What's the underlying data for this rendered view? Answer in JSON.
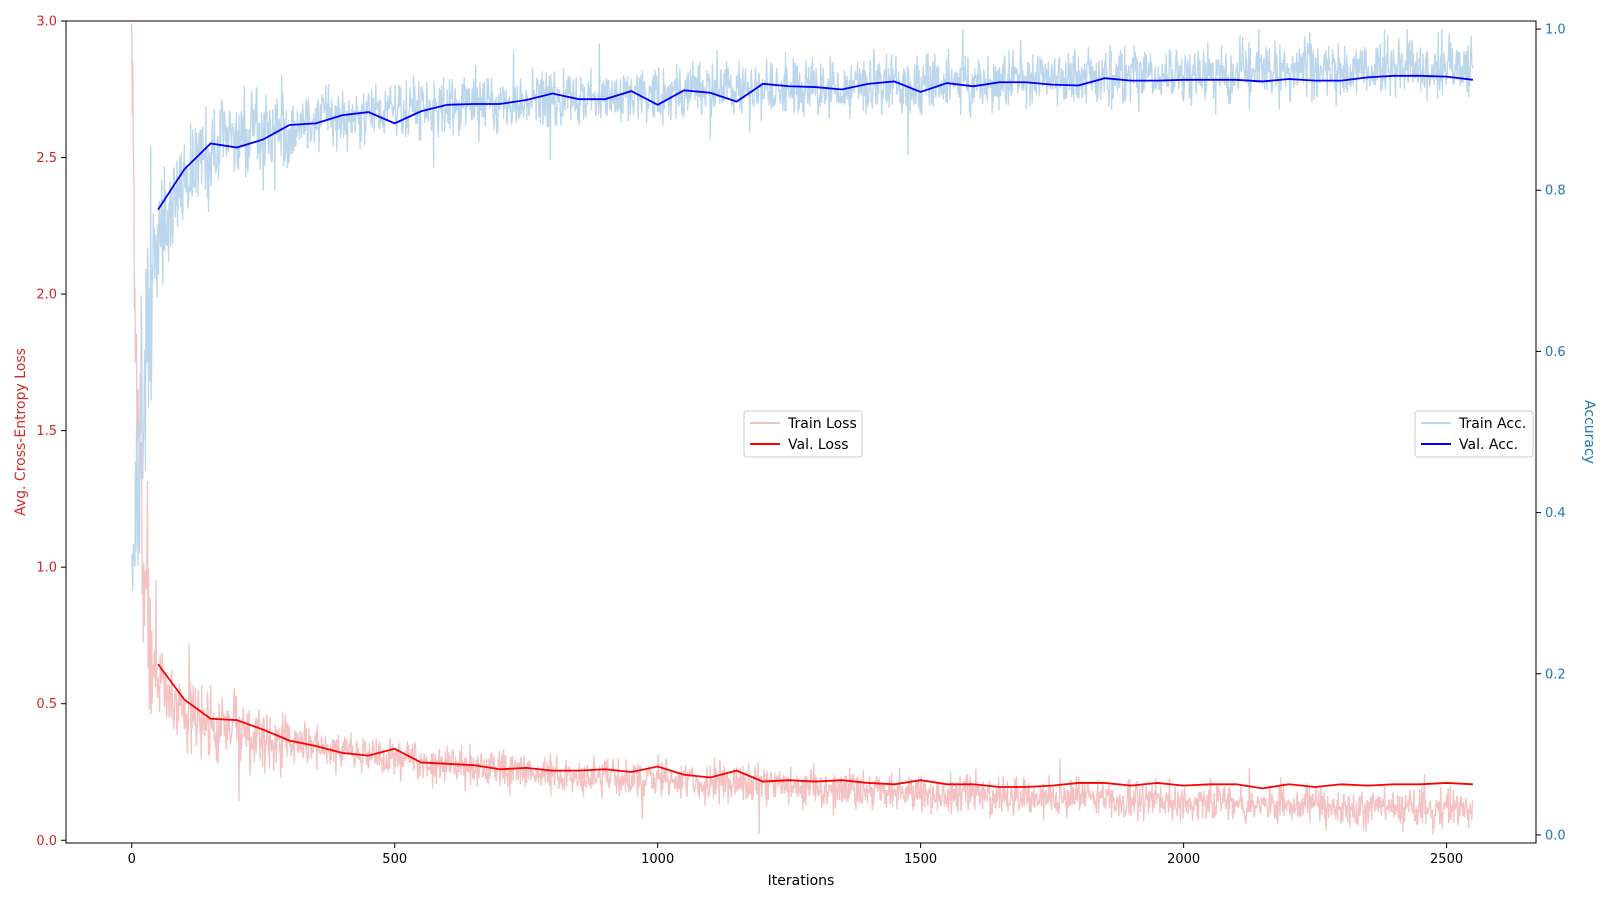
{
  "colors": {
    "train_loss": "#f4c2c2",
    "val_loss": "#ff0000",
    "train_acc": "#bcd6ec",
    "val_acc": "#0000ff",
    "left_axis": "#d62728",
    "right_axis": "#1f77b4"
  },
  "chart_data": {
    "type": "line",
    "xlabel": "Iterations",
    "ylabel_left": "Avg. Cross-Entropy Loss",
    "ylabel_right": "Accuracy",
    "xlim": [
      -125,
      2670
    ],
    "ylim_left": [
      -0.01,
      3.0
    ],
    "ylim_right": [
      -0.01,
      1.01
    ],
    "grid": false,
    "x_ticks": [
      0,
      500,
      1000,
      1500,
      2000,
      2500
    ],
    "x_tick_labels": [
      "0",
      "500",
      "1000",
      "1500",
      "2000",
      "2500"
    ],
    "y_left_ticks": [
      0.0,
      0.5,
      1.0,
      1.5,
      2.0,
      2.5,
      3.0
    ],
    "y_left_tick_labels": [
      "0.0",
      "0.5",
      "1.0",
      "1.5",
      "2.0",
      "2.5",
      "3.0"
    ],
    "y_right_ticks": [
      0.0,
      0.2,
      0.4,
      0.6,
      0.8,
      1.0
    ],
    "y_right_tick_labels": [
      "0.0",
      "0.2",
      "0.4",
      "0.6",
      "0.8",
      "1.0"
    ],
    "legends": [
      {
        "placement": "center",
        "entries": [
          "Train Loss",
          "Val. Loss"
        ]
      },
      {
        "placement": "center-right",
        "entries": [
          "Train Acc.",
          "Val. Acc."
        ]
      }
    ],
    "train_loss_trend": {
      "name": "Train Loss",
      "axis": "left",
      "x": [
        0,
        5,
        10,
        20,
        30,
        40,
        60,
        100,
        150,
        200,
        300,
        400,
        500,
        600,
        700,
        800,
        1000,
        1200,
        1400,
        1600,
        1800,
        2000,
        2200,
        2400,
        2550
      ],
      "y": [
        2.9,
        2.2,
        1.6,
        1.05,
        0.8,
        0.66,
        0.55,
        0.47,
        0.43,
        0.41,
        0.36,
        0.33,
        0.3,
        0.28,
        0.26,
        0.24,
        0.22,
        0.2,
        0.18,
        0.165,
        0.155,
        0.14,
        0.13,
        0.12,
        0.11
      ]
    },
    "train_acc_trend": {
      "name": "Train Acc.",
      "axis": "right",
      "x": [
        0,
        5,
        10,
        20,
        30,
        40,
        60,
        100,
        150,
        200,
        300,
        400,
        500,
        600,
        700,
        800,
        1000,
        1200,
        1400,
        1600,
        1800,
        2000,
        2200,
        2400,
        2550
      ],
      "y": [
        0.36,
        0.35,
        0.4,
        0.5,
        0.62,
        0.7,
        0.76,
        0.82,
        0.85,
        0.86,
        0.88,
        0.89,
        0.9,
        0.905,
        0.91,
        0.915,
        0.92,
        0.925,
        0.93,
        0.935,
        0.94,
        0.945,
        0.948,
        0.952,
        0.955
      ]
    },
    "val_loss": {
      "name": "Val. Loss",
      "axis": "left",
      "x": [
        50,
        100,
        150,
        200,
        250,
        300,
        350,
        400,
        450,
        500,
        550,
        600,
        650,
        700,
        750,
        800,
        850,
        900,
        950,
        1000,
        1050,
        1100,
        1150,
        1200,
        1250,
        1300,
        1350,
        1400,
        1450,
        1500,
        1550,
        1600,
        1650,
        1700,
        1750,
        1800,
        1850,
        1900,
        1950,
        2000,
        2050,
        2100,
        2150,
        2200,
        2250,
        2300,
        2350,
        2400,
        2450,
        2500,
        2550
      ],
      "y": [
        0.645,
        0.515,
        0.445,
        0.44,
        0.405,
        0.365,
        0.345,
        0.32,
        0.31,
        0.335,
        0.285,
        0.28,
        0.275,
        0.26,
        0.265,
        0.255,
        0.255,
        0.26,
        0.25,
        0.27,
        0.24,
        0.23,
        0.255,
        0.215,
        0.22,
        0.215,
        0.22,
        0.21,
        0.205,
        0.22,
        0.205,
        0.205,
        0.195,
        0.195,
        0.2,
        0.21,
        0.21,
        0.2,
        0.21,
        0.2,
        0.205,
        0.205,
        0.19,
        0.205,
        0.195,
        0.205,
        0.2,
        0.205,
        0.205,
        0.21,
        0.205
      ]
    },
    "val_acc": {
      "name": "Val. Acc.",
      "axis": "right",
      "x": [
        50,
        100,
        150,
        200,
        250,
        300,
        350,
        400,
        450,
        500,
        550,
        600,
        650,
        700,
        750,
        800,
        850,
        900,
        950,
        1000,
        1050,
        1100,
        1150,
        1200,
        1250,
        1300,
        1350,
        1400,
        1450,
        1500,
        1550,
        1600,
        1650,
        1700,
        1750,
        1800,
        1850,
        1900,
        1950,
        2000,
        2050,
        2100,
        2150,
        2200,
        2250,
        2300,
        2350,
        2400,
        2450,
        2500,
        2550
      ],
      "y": [
        0.776,
        0.826,
        0.858,
        0.853,
        0.863,
        0.881,
        0.883,
        0.893,
        0.897,
        0.883,
        0.898,
        0.906,
        0.907,
        0.907,
        0.912,
        0.92,
        0.913,
        0.913,
        0.923,
        0.906,
        0.924,
        0.921,
        0.91,
        0.932,
        0.929,
        0.928,
        0.925,
        0.932,
        0.935,
        0.922,
        0.933,
        0.929,
        0.934,
        0.934,
        0.931,
        0.93,
        0.939,
        0.936,
        0.936,
        0.937,
        0.937,
        0.937,
        0.935,
        0.938,
        0.936,
        0.936,
        0.94,
        0.942,
        0.942,
        0.941,
        0.937
      ]
    }
  }
}
